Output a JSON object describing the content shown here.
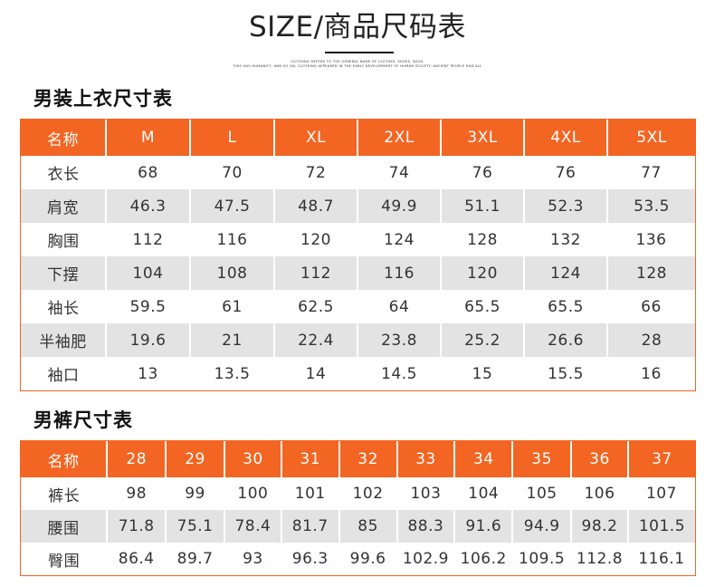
{
  "header": {
    "title": "SIZE/商品尺码表",
    "tagline_line1": "CLOTHING REFERS TO THE GENERAL NAME OF CLOTHES, SHOES, BAGS,",
    "tagline_line2": "THIS HAS HUMANITY, AND SO ON. CLOTHING APPEARED IN THE EARLY DEVELOPMENT OF HUMAN SOCIETY. ANCIENT PEOPLE HAD ALL"
  },
  "tops": {
    "heading": "男装上衣尺寸表",
    "header_row": [
      "名称",
      "M",
      "L",
      "XL",
      "2XL",
      "3XL",
      "4XL",
      "5XL"
    ],
    "rows": [
      {
        "label": "衣长",
        "values": [
          "68",
          "70",
          "72",
          "74",
          "76",
          "76",
          "77"
        ]
      },
      {
        "label": "肩宽",
        "values": [
          "46.3",
          "47.5",
          "48.7",
          "49.9",
          "51.1",
          "52.3",
          "53.5"
        ]
      },
      {
        "label": "胸围",
        "values": [
          "112",
          "116",
          "120",
          "124",
          "128",
          "132",
          "136"
        ]
      },
      {
        "label": "下摆",
        "values": [
          "104",
          "108",
          "112",
          "116",
          "120",
          "124",
          "128"
        ]
      },
      {
        "label": "袖长",
        "values": [
          "59.5",
          "61",
          "62.5",
          "64",
          "65.5",
          "65.5",
          "66"
        ]
      },
      {
        "label": "半袖肥",
        "values": [
          "19.6",
          "21",
          "22.4",
          "23.8",
          "25.2",
          "26.6",
          "28"
        ]
      },
      {
        "label": "袖口",
        "values": [
          "13",
          "13.5",
          "14",
          "14.5",
          "15",
          "15.5",
          "16"
        ]
      }
    ]
  },
  "pants": {
    "heading": "男裤尺寸表",
    "header_row": [
      "名称",
      "28",
      "29",
      "30",
      "31",
      "32",
      "33",
      "34",
      "35",
      "36",
      "37"
    ],
    "rows": [
      {
        "label": "裤长",
        "values": [
          "98",
          "99",
          "100",
          "101",
          "102",
          "103",
          "104",
          "105",
          "106",
          "107"
        ]
      },
      {
        "label": "腰围",
        "values": [
          "71.8",
          "75.1",
          "78.4",
          "81.7",
          "85",
          "88.3",
          "91.6",
          "94.9",
          "98.2",
          "101.5"
        ]
      },
      {
        "label": "臀围",
        "values": [
          "86.4",
          "89.7",
          "93",
          "96.3",
          "99.6",
          "102.9",
          "106.2",
          "109.5",
          "112.8",
          "116.1"
        ]
      }
    ]
  },
  "colors": {
    "accent": "#f26522",
    "shade_row": "#e3e3e3"
  }
}
